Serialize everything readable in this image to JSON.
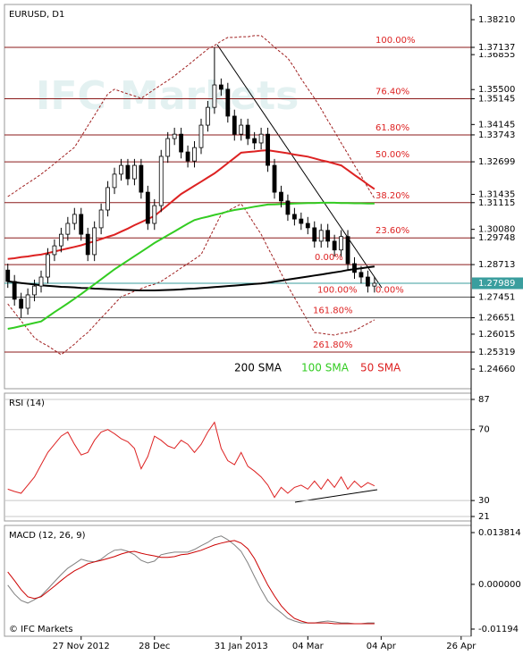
{
  "chart_data": [
    {
      "type": "candlestick",
      "title": "EURUSD, D1",
      "watermark": "IFC Markets",
      "categories": [
        null,
        null,
        null,
        null,
        null,
        null,
        null,
        null,
        null,
        null,
        null,
        "27 Nov 2012",
        null,
        null,
        null,
        null,
        null,
        null,
        null,
        null,
        null,
        null,
        "28 Dec",
        null,
        null,
        null,
        null,
        null,
        null,
        null,
        null,
        null,
        null,
        null,
        null,
        "31 Jan 2013",
        null,
        null,
        null,
        null,
        null,
        null,
        null,
        null,
        null,
        "04 Mar",
        null,
        null,
        null,
        null,
        null,
        null,
        null,
        null,
        null,
        null,
        "04 Apr",
        null,
        null,
        null,
        null,
        null,
        null,
        null,
        null,
        null,
        null,
        null,
        "26 Apr",
        null
      ],
      "open": [
        1.285,
        1.2806,
        1.2737,
        1.2702,
        1.2754,
        1.2788,
        1.2823,
        1.291,
        1.2944,
        1.2989,
        1.3031,
        1.3066,
        1.2989,
        1.291,
        1.3014,
        1.3083,
        1.317,
        1.3222,
        1.3256,
        1.3204,
        1.3256,
        1.3152,
        1.3031,
        1.31,
        1.3291,
        1.336,
        1.3377,
        1.3308,
        1.3273,
        1.3325,
        1.3412,
        1.3481,
        1.3568,
        1.3551,
        1.3447,
        1.3377,
        1.3412,
        1.336,
        1.3343,
        1.3377,
        1.3256,
        1.3152,
        1.3118,
        1.3066,
        1.3048,
        1.3031,
        1.3014,
        1.2962,
        1.3004,
        1.2962,
        1.2928,
        1.298,
        1.2875,
        1.2841,
        1.2823,
        1.2788,
        null,
        null,
        null,
        null,
        null,
        null,
        null,
        null,
        null,
        null,
        null,
        null,
        null,
        null
      ],
      "high": [
        1.2875,
        1.2831,
        1.2762,
        1.2779,
        1.2813,
        1.2848,
        1.2935,
        1.2969,
        1.3014,
        1.3056,
        1.3091,
        1.3091,
        1.3014,
        1.3039,
        1.3108,
        1.3195,
        1.3247,
        1.3281,
        1.3281,
        1.3281,
        1.3281,
        1.3177,
        1.3125,
        1.3316,
        1.3385,
        1.3402,
        1.3402,
        1.3333,
        1.335,
        1.3437,
        1.3506,
        1.3714,
        1.3593,
        1.3576,
        1.3472,
        1.3437,
        1.3437,
        1.3385,
        1.3402,
        1.3402,
        1.3281,
        1.3177,
        1.3143,
        1.3091,
        1.3073,
        1.3056,
        1.3039,
        1.3029,
        1.3029,
        1.2987,
        1.3005,
        1.3005,
        1.29,
        1.2866,
        1.2848,
        1.2824,
        null,
        null,
        null,
        null,
        null,
        null,
        null,
        null,
        null,
        null,
        null,
        null,
        null,
        null
      ],
      "low": [
        1.2781,
        1.2712,
        1.2665,
        1.2677,
        1.2729,
        1.2763,
        1.2798,
        1.2885,
        1.2919,
        1.2964,
        1.3006,
        1.2964,
        1.2885,
        1.2885,
        1.2989,
        1.3058,
        1.3145,
        1.3197,
        1.3179,
        1.3179,
        1.3127,
        1.3006,
        1.3006,
        1.3075,
        1.3266,
        1.3335,
        1.3283,
        1.3248,
        1.3248,
        1.33,
        1.3387,
        1.3456,
        1.3526,
        1.3422,
        1.3352,
        1.3352,
        1.3335,
        1.3318,
        1.3318,
        1.3231,
        1.3127,
        1.3093,
        1.3041,
        1.3023,
        1.3006,
        1.2989,
        1.2937,
        1.2937,
        1.2937,
        1.2903,
        1.2903,
        1.285,
        1.2816,
        1.2798,
        1.2763,
        1.2763,
        null,
        null,
        null,
        null,
        null,
        null,
        null,
        null,
        null,
        null,
        null,
        null,
        null,
        null
      ],
      "close": [
        1.2806,
        1.2737,
        1.2702,
        1.2754,
        1.2788,
        1.2823,
        1.291,
        1.2944,
        1.2989,
        1.3031,
        1.3066,
        1.2989,
        1.291,
        1.3014,
        1.3083,
        1.317,
        1.3222,
        1.3256,
        1.3204,
        1.3256,
        1.3152,
        1.3031,
        1.31,
        1.3291,
        1.336,
        1.3377,
        1.3308,
        1.3273,
        1.3325,
        1.3412,
        1.3481,
        1.3568,
        1.3551,
        1.3447,
        1.3377,
        1.3412,
        1.336,
        1.3343,
        1.3377,
        1.3256,
        1.3152,
        1.3118,
        1.3066,
        1.3048,
        1.3031,
        1.3014,
        1.2962,
        1.3004,
        1.2962,
        1.2928,
        1.298,
        1.2875,
        1.2841,
        1.2823,
        1.2788,
        1.2799,
        null,
        null,
        null,
        null,
        null,
        null,
        null,
        null,
        null,
        null,
        null,
        null,
        null,
        null
      ],
      "up_color": "#ffffff",
      "down_color": "#000000",
      "series": [
        {
          "name": "200 SMA",
          "color": "#000000",
          "values": [
            1.2806,
            1.2803,
            1.28,
            1.2797,
            1.2794,
            1.2791,
            1.2789,
            1.2787,
            1.2785,
            1.2784,
            1.2783,
            1.2781,
            1.278,
            1.2778,
            1.2777,
            1.2776,
            1.2775,
            1.2774,
            1.2773,
            1.2772,
            1.2771,
            1.2771,
            1.2771,
            1.2772,
            1.2773,
            1.2774,
            1.2775,
            1.2777,
            1.2778,
            1.278,
            1.2782,
            1.2784,
            1.2786,
            1.2788,
            1.279,
            1.2792,
            1.2794,
            1.2796,
            1.2798,
            1.2801,
            1.2805,
            1.2809,
            1.2813,
            1.2817,
            1.2821,
            1.2825,
            1.2829,
            1.2833,
            1.2837,
            1.2841,
            1.2845,
            1.285,
            1.2854,
            1.2857,
            1.2861,
            1.2864,
            null,
            null,
            null,
            null,
            null,
            null,
            null,
            null,
            null,
            null,
            null,
            null,
            null,
            null
          ]
        },
        {
          "name": "100 SMA",
          "color": "#33cc22",
          "values": [
            1.2622,
            1.2627,
            1.2633,
            1.2639,
            1.2645,
            1.2651,
            1.2669,
            1.2687,
            1.2704,
            1.2721,
            1.2739,
            1.2757,
            1.2776,
            1.2795,
            1.2814,
            1.2834,
            1.2853,
            1.287,
            1.2887,
            1.2904,
            1.2921,
            1.2938,
            1.2955,
            1.297,
            1.2985,
            1.3,
            1.3015,
            1.303,
            1.3044,
            1.3051,
            1.3057,
            1.3064,
            1.307,
            1.3077,
            1.3083,
            1.3087,
            1.3091,
            1.3096,
            1.31,
            1.3104,
            1.3105,
            1.3106,
            1.3107,
            1.3108,
            1.3109,
            1.311,
            1.311,
            1.3111,
            1.3111,
            1.3111,
            1.311,
            1.311,
            1.3109,
            1.3109,
            1.3108,
            1.3108,
            null,
            null,
            null,
            null,
            null,
            null,
            null,
            null,
            null,
            null,
            null,
            null,
            null,
            null
          ]
        },
        {
          "name": "50 SMA",
          "color": "#dd2222",
          "values": [
            1.2893,
            1.2896,
            1.29,
            1.2903,
            1.2907,
            1.291,
            1.2916,
            1.2922,
            1.2928,
            1.2934,
            1.294,
            1.2946,
            1.2954,
            1.2962,
            1.297,
            1.2979,
            1.2987,
            1.2999,
            1.3011,
            1.3024,
            1.3036,
            1.3048,
            1.306,
            1.3081,
            1.3102,
            1.3124,
            1.3145,
            1.3161,
            1.3177,
            1.3193,
            1.3209,
            1.3225,
            1.3245,
            1.3265,
            1.3285,
            1.3305,
            1.3308,
            1.331,
            1.3313,
            1.3315,
            1.3311,
            1.3307,
            1.3303,
            1.3298,
            1.3294,
            1.329,
            1.3283,
            1.3276,
            1.327,
            1.3263,
            1.3256,
            1.3238,
            1.3219,
            1.3201,
            1.3182,
            1.3164,
            null,
            null,
            null,
            null,
            null,
            null,
            null,
            null,
            null,
            null,
            null,
            null,
            null,
            null
          ]
        }
      ],
      "bands": {
        "color": "#a02020",
        "upper": [
          1.3135,
          1.3152,
          1.317,
          1.3187,
          1.3204,
          1.3222,
          1.3242,
          1.3263,
          1.3284,
          1.3305,
          1.3326,
          1.3367,
          1.3409,
          1.345,
          1.3492,
          1.3533,
          1.3551,
          1.3542,
          1.3533,
          1.3525,
          1.3516,
          1.3533,
          1.3551,
          1.3568,
          1.3585,
          1.3603,
          1.3624,
          1.3644,
          1.3665,
          1.3686,
          1.3707,
          1.3721,
          1.3738,
          1.3752,
          1.3752,
          1.3755,
          1.3755,
          1.3759,
          1.3759,
          1.3738,
          1.3714,
          1.3693,
          1.3672,
          1.3634,
          1.3592,
          1.3554,
          1.3516,
          1.3475,
          1.343,
          1.3388,
          1.3343,
          1.3301,
          1.3256,
          1.3215,
          1.317,
          1.3128,
          null,
          null,
          null,
          null,
          null,
          null,
          null,
          null,
          null,
          null,
          null,
          null,
          null,
          null
        ],
        "lower": [
          1.2719,
          1.2686,
          1.2653,
          1.262,
          1.2587,
          1.257,
          1.2556,
          1.2539,
          1.2522,
          1.2542,
          1.2563,
          1.2587,
          1.2608,
          1.2636,
          1.2664,
          1.2691,
          1.2719,
          1.2747,
          1.2757,
          1.2768,
          1.2778,
          1.2788,
          1.2795,
          1.2806,
          1.2823,
          1.284,
          1.2858,
          1.2875,
          1.2892,
          1.291,
          1.2962,
          1.3014,
          1.3066,
          1.308,
          1.3093,
          1.3107,
          1.3069,
          1.3028,
          1.2989,
          1.2937,
          1.2889,
          1.2837,
          1.2788,
          1.2743,
          1.2698,
          1.2653,
          1.2608,
          1.2605,
          1.2601,
          1.2598,
          1.2605,
          1.2608,
          1.2615,
          1.2629,
          1.2643,
          1.2657,
          null,
          null,
          null,
          null,
          null,
          null,
          null,
          null,
          null,
          null,
          null,
          null,
          null,
          null
        ]
      },
      "ylim": [
        1.239,
        1.388
      ],
      "yticks": [
        {
          "value": 1.3821,
          "label": "1.38210"
        },
        1.36855,
        {
          "value": 1.355,
          "label": "1.35500"
        },
        1.34145,
        1.31435,
        {
          "value": 1.3008,
          "label": "1.30080"
        },
        1.26015,
        {
          "value": 1.2466,
          "label": "1.24660"
        }
      ],
      "grid": false,
      "levels": [
        {
          "value": 1.37137,
          "color": "#8b1a1a"
        },
        {
          "value": 1.35145,
          "color": "#8b1a1a"
        },
        {
          "value": 1.33743,
          "color": "#8b1a1a"
        },
        {
          "value": 1.32699,
          "color": "#8b1a1a"
        },
        {
          "value": 1.31115,
          "color": "#8b1a1a"
        },
        {
          "value": 1.29748,
          "color": "#8b1a1a"
        },
        {
          "value": 1.28713,
          "color": "#8b1a1a"
        },
        {
          "value": 1.27451,
          "color": "#555555"
        },
        {
          "value": 1.26651,
          "color": "#555555"
        },
        {
          "value": 1.25319,
          "color": "#8b1a1a"
        }
      ],
      "last_price": {
        "value": 1.27989,
        "color": "#3a9e9e"
      },
      "fibonacci": [
        {
          "label": "100.00%",
          "value": 1.37137
        },
        {
          "label": "76.40%",
          "value": 1.35145
        },
        {
          "label": "61.80%",
          "value": 1.33743
        },
        {
          "label": "50.00%",
          "value": 1.32699
        },
        {
          "label": "38.20%",
          "value": 1.31115
        },
        {
          "label": "23.60%",
          "value": 1.29748
        },
        {
          "label": "0.00%",
          "value": 1.28713
        },
        {
          "label": "100.00%",
          "value": 1.27451
        },
        {
          "label": "0.00%",
          "value": 1.27451
        },
        {
          "label": "161.80%",
          "value": 1.26651
        },
        {
          "label": "261.80%",
          "value": 1.25319
        }
      ],
      "fibonacci_color": "#dd2222"
    },
    {
      "type": "line",
      "title": "RSI (14)",
      "series": [
        {
          "color": "#dd2222",
          "values": [
            36.4,
            35.1,
            34.1,
            38.7,
            43.3,
            50.2,
            57.1,
            61.7,
            66.3,
            68.6,
            61.7,
            55.7,
            57.1,
            64.0,
            68.6,
            70.0,
            67.7,
            64.9,
            63.1,
            59.4,
            47.9,
            54.8,
            66.3,
            64.0,
            60.8,
            59.4,
            64.0,
            61.7,
            57.1,
            61.7,
            68.6,
            74.1,
            59.4,
            52.5,
            50.2,
            57.1,
            49.3,
            46.6,
            43.3,
            38.7,
            31.8,
            37.4,
            34.1,
            37.4,
            38.7,
            36.4,
            41.0,
            36.4,
            42.0,
            37.4,
            43.3,
            36.4,
            41.0,
            37.4,
            40.1,
            38.3,
            null,
            null,
            null,
            null,
            null,
            null,
            null,
            null,
            null,
            null,
            null,
            null,
            null,
            null
          ]
        }
      ],
      "ylim": [
        21,
        87
      ],
      "yticks": [
        87,
        70,
        30,
        21
      ],
      "grid": true
    },
    {
      "type": "line",
      "title": "MACD (12, 26, 9)",
      "annotation": "© IFC Markets",
      "series": [
        {
          "color": "#808080",
          "values": [
            -0.0002,
            -0.0026,
            -0.0043,
            -0.005,
            -0.0041,
            -0.0031,
            -0.0012,
            0.0007,
            0.0026,
            0.0043,
            0.0055,
            0.0067,
            0.0062,
            0.006,
            0.0067,
            0.0081,
            0.0091,
            0.0093,
            0.0088,
            0.0079,
            0.0064,
            0.0057,
            0.0062,
            0.0079,
            0.0083,
            0.0086,
            0.0086,
            0.0086,
            0.0093,
            0.0103,
            0.0112,
            0.0124,
            0.0129,
            0.0119,
            0.0105,
            0.0088,
            0.0057,
            0.0021,
            -0.0014,
            -0.0045,
            -0.0062,
            -0.0076,
            -0.0091,
            -0.0098,
            -0.0103,
            -0.0103,
            -0.0103,
            -0.01,
            -0.0098,
            -0.01,
            -0.0103,
            -0.0103,
            -0.0105,
            -0.0105,
            -0.0103,
            -0.0103,
            null,
            null,
            null,
            null,
            null,
            null,
            null,
            null,
            null,
            null,
            null,
            null,
            null,
            null
          ]
        },
        {
          "color": "#cc0000",
          "values": [
            0.0033,
            0.001,
            -0.0014,
            -0.0033,
            -0.0038,
            -0.0033,
            -0.0019,
            -0.0005,
            0.001,
            0.0024,
            0.0036,
            0.0045,
            0.0055,
            0.006,
            0.0064,
            0.0069,
            0.0074,
            0.0081,
            0.0086,
            0.0088,
            0.0083,
            0.0079,
            0.0076,
            0.0072,
            0.0072,
            0.0074,
            0.0079,
            0.0081,
            0.0086,
            0.0091,
            0.0098,
            0.0105,
            0.011,
            0.0114,
            0.0117,
            0.011,
            0.0095,
            0.0069,
            0.0033,
            -0.0002,
            -0.0031,
            -0.0057,
            -0.0076,
            -0.0091,
            -0.0098,
            -0.0103,
            -0.0103,
            -0.0103,
            -0.0103,
            -0.0105,
            -0.0105,
            -0.0105,
            -0.0105,
            -0.0105,
            -0.0105,
            -0.0105,
            null,
            null,
            null,
            null,
            null,
            null,
            null,
            null,
            null,
            null,
            null,
            null,
            null,
            null
          ]
        }
      ],
      "ylim": [
        -0.01194,
        0.013814
      ],
      "yticks": [
        0.013814,
        {
          "value": 0,
          "label": "0.000000"
        },
        -0.01194
      ],
      "grid": false
    }
  ]
}
